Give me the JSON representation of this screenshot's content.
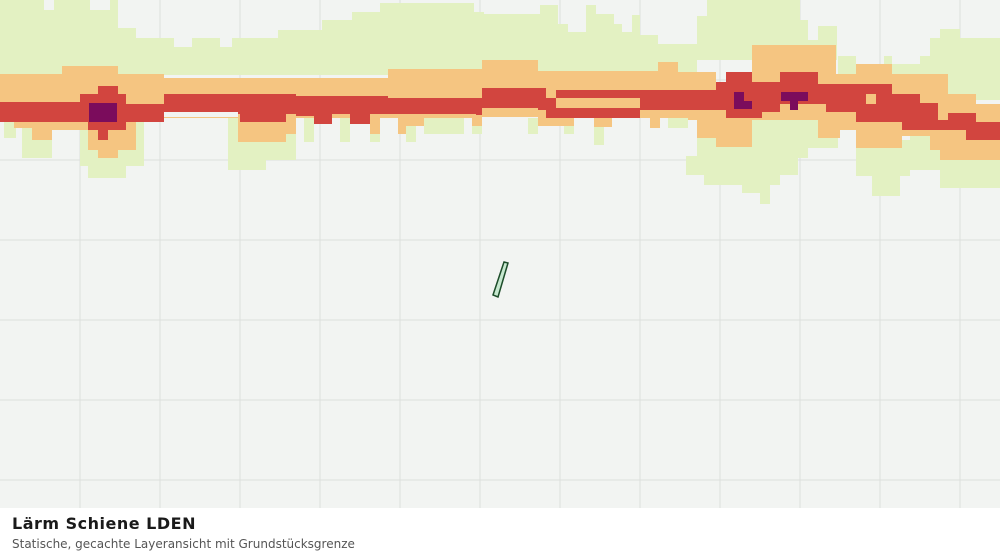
{
  "caption": {
    "title": "Lärm Schiene LDEN",
    "subtitle": "Statische, gecachte Layeransicht mit Grundstücksgrenze"
  }
}
